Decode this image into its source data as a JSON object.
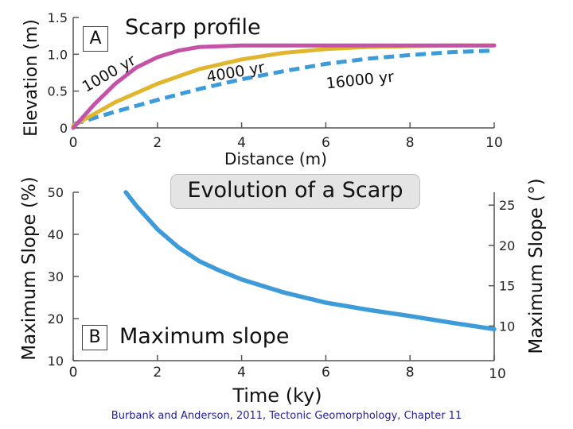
{
  "main_title": "Evolution of a Scarp",
  "caption": "Burbank and Anderson, 2011, Tectonic Geomorphology, Chapter 11",
  "colors": {
    "pink": "#c453a8",
    "gold": "#dfb62e",
    "blue": "#3c9bd8",
    "axis": "#555555",
    "caption": "#1f1f9a"
  },
  "chart_data": [
    {
      "type": "line",
      "panel_label": "A",
      "title": "Scarp profile",
      "xlabel": "Distance (m)",
      "ylabel": "Elevation (m)",
      "xlim": [
        0,
        10
      ],
      "ylim": [
        0,
        1.5
      ],
      "xticks": [
        "0",
        "2",
        "4",
        "6",
        "8",
        "10"
      ],
      "yticks": [
        "0",
        "0.5",
        "1.0",
        "1.5"
      ],
      "series": [
        {
          "name": "1000 yr",
          "color": "#c453a8",
          "style": "solid",
          "x": [
            0,
            0.5,
            1,
            1.5,
            2,
            2.5,
            3,
            4,
            5,
            6,
            7,
            8,
            9,
            10
          ],
          "y": [
            0.0,
            0.32,
            0.6,
            0.82,
            0.96,
            1.05,
            1.1,
            1.12,
            1.12,
            1.12,
            1.12,
            1.12,
            1.12,
            1.12
          ]
        },
        {
          "name": "4000 yr",
          "color": "#dfb62e",
          "style": "solid",
          "x": [
            0,
            1,
            2,
            3,
            4,
            5,
            6,
            7,
            8,
            9,
            10
          ],
          "y": [
            0.03,
            0.35,
            0.6,
            0.8,
            0.93,
            1.02,
            1.07,
            1.1,
            1.11,
            1.12,
            1.12
          ]
        },
        {
          "name": "16000 yr",
          "color": "#3c9bd8",
          "style": "dashed",
          "x": [
            0,
            1,
            2,
            3,
            4,
            5,
            6,
            7,
            8,
            9,
            10
          ],
          "y": [
            0.05,
            0.22,
            0.38,
            0.53,
            0.66,
            0.77,
            0.87,
            0.94,
            0.99,
            1.03,
            1.05
          ]
        }
      ]
    },
    {
      "type": "line",
      "panel_label": "B",
      "title": "Maximum slope",
      "xlabel": "Time (ky)",
      "ylabel": "Maximum Slope (%)",
      "ylabel_right": "Maximum Slope (°)",
      "xlim": [
        0,
        10
      ],
      "ylim": [
        10,
        50
      ],
      "ylim_right": [
        5.7,
        26.6
      ],
      "xticks_bottom": [
        "0",
        "2",
        "4",
        "6",
        "8",
        "10"
      ],
      "xticks_top": [
        "10"
      ],
      "yticks_left": [
        "10",
        "20",
        "30",
        "40",
        "50"
      ],
      "yticks_right": [
        "10",
        "15",
        "20",
        "25"
      ],
      "series": [
        {
          "color": "#3c9bd8",
          "style": "solid",
          "x": [
            1.25,
            1.5,
            2,
            2.5,
            3,
            3.5,
            4,
            5,
            6,
            7,
            8,
            9,
            10
          ],
          "y": [
            50,
            46.8,
            41.2,
            36.9,
            33.6,
            31.3,
            29.3,
            26.2,
            23.8,
            22.1,
            20.6,
            19.0,
            17.5
          ]
        }
      ]
    }
  ]
}
